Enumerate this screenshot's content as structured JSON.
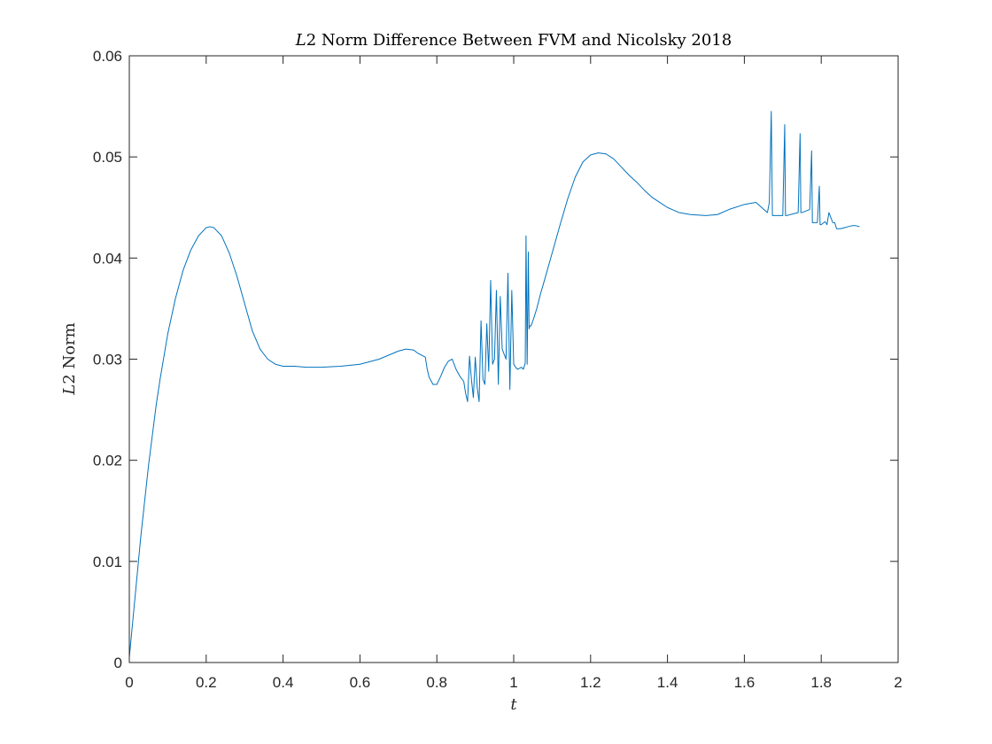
{
  "chart_data": {
    "type": "line",
    "title_italic": "L",
    "title_rest": "2 Norm Difference Between FVM and Nicolsky 2018",
    "xlabel": "t",
    "ylabel_italic": "L",
    "ylabel_rest": "2 Norm",
    "xlim": [
      0,
      2
    ],
    "ylim": [
      0,
      0.06
    ],
    "xticks": [
      0,
      0.2,
      0.4,
      0.6,
      0.8,
      1,
      1.2,
      1.4,
      1.6,
      1.8,
      2
    ],
    "xtick_labels": [
      "0",
      "0.2",
      "0.4",
      "0.6",
      "0.8",
      "1",
      "1.2",
      "1.4",
      "1.6",
      "1.8",
      "2"
    ],
    "yticks": [
      0,
      0.01,
      0.02,
      0.03,
      0.04,
      0.05,
      0.06
    ],
    "ytick_labels": [
      "0",
      "0.01",
      "0.02",
      "0.03",
      "0.04",
      "0.05",
      "0.06"
    ],
    "grid": false,
    "line_color": "#0072BD",
    "series": [
      {
        "x": [
          0,
          0.01,
          0.02,
          0.03,
          0.04,
          0.05,
          0.06,
          0.07,
          0.08,
          0.1,
          0.12,
          0.14,
          0.16,
          0.18,
          0.2,
          0.21,
          0.22,
          0.24,
          0.26,
          0.28,
          0.3,
          0.32,
          0.34,
          0.36,
          0.38,
          0.4,
          0.43,
          0.46,
          0.5,
          0.55,
          0.6,
          0.65,
          0.7,
          0.72,
          0.74,
          0.75,
          0.76,
          0.77,
          0.775,
          0.78,
          0.79,
          0.8,
          0.81,
          0.82,
          0.83,
          0.84,
          0.85,
          0.86,
          0.87,
          0.875,
          0.88,
          0.885,
          0.89,
          0.895,
          0.9,
          0.905,
          0.91,
          0.915,
          0.92,
          0.925,
          0.93,
          0.935,
          0.94,
          0.945,
          0.95,
          0.955,
          0.96,
          0.965,
          0.97,
          0.975,
          0.98,
          0.985,
          0.99,
          0.995,
          1.0,
          1.005,
          1.01,
          1.02,
          1.025,
          1.03,
          1.032,
          1.035,
          1.038,
          1.04,
          1.042,
          1.045,
          1.05,
          1.06,
          1.07,
          1.08,
          1.1,
          1.12,
          1.14,
          1.16,
          1.18,
          1.2,
          1.22,
          1.24,
          1.26,
          1.28,
          1.3,
          1.32,
          1.34,
          1.36,
          1.38,
          1.4,
          1.43,
          1.46,
          1.5,
          1.53,
          1.56,
          1.6,
          1.63,
          1.66,
          1.665,
          1.67,
          1.673,
          1.675,
          1.7,
          1.705,
          1.707,
          1.71,
          1.74,
          1.745,
          1.747,
          1.75,
          1.77,
          1.775,
          1.777,
          1.78,
          1.79,
          1.795,
          1.797,
          1.8,
          1.81,
          1.815,
          1.82,
          1.83,
          1.835,
          1.84,
          1.85,
          1.86,
          1.87,
          1.88,
          1.89,
          1.9
        ],
        "values": [
          0.0005,
          0.0045,
          0.0085,
          0.0125,
          0.016,
          0.0195,
          0.0225,
          0.0255,
          0.028,
          0.0325,
          0.036,
          0.0388,
          0.0408,
          0.0422,
          0.043,
          0.0431,
          0.043,
          0.0422,
          0.0405,
          0.0382,
          0.0355,
          0.0328,
          0.031,
          0.03,
          0.0295,
          0.0293,
          0.0293,
          0.0292,
          0.0292,
          0.0293,
          0.0295,
          0.03,
          0.0308,
          0.031,
          0.0309,
          0.0306,
          0.0304,
          0.0302,
          0.029,
          0.0282,
          0.0275,
          0.0275,
          0.0283,
          0.0292,
          0.0298,
          0.03,
          0.029,
          0.0283,
          0.0278,
          0.0266,
          0.0258,
          0.0303,
          0.028,
          0.0262,
          0.0302,
          0.0272,
          0.0258,
          0.0338,
          0.028,
          0.0275,
          0.0335,
          0.0288,
          0.0378,
          0.0295,
          0.03,
          0.0368,
          0.0275,
          0.0362,
          0.031,
          0.0305,
          0.03,
          0.0385,
          0.027,
          0.0368,
          0.0295,
          0.0292,
          0.029,
          0.0292,
          0.029,
          0.0296,
          0.0422,
          0.0295,
          0.0406,
          0.033,
          0.0333,
          0.0333,
          0.0338,
          0.035,
          0.0365,
          0.0378,
          0.0405,
          0.0432,
          0.0458,
          0.048,
          0.0495,
          0.0502,
          0.0504,
          0.0503,
          0.0498,
          0.049,
          0.0482,
          0.0475,
          0.0467,
          0.046,
          0.0455,
          0.045,
          0.0445,
          0.0443,
          0.0442,
          0.0443,
          0.0448,
          0.0453,
          0.0455,
          0.0445,
          0.0455,
          0.0545,
          0.0442,
          0.0442,
          0.0442,
          0.0532,
          0.0442,
          0.0442,
          0.0445,
          0.0523,
          0.0445,
          0.0445,
          0.0448,
          0.0506,
          0.0435,
          0.0435,
          0.0435,
          0.0471,
          0.0433,
          0.0433,
          0.0436,
          0.0433,
          0.0445,
          0.0435,
          0.0435,
          0.0429,
          0.0429,
          0.043,
          0.0431,
          0.0432,
          0.0432,
          0.0431
        ]
      },
      {
        "x": [
          0,
          1.9
        ],
        "values": [
          0,
          0
        ]
      }
    ]
  }
}
